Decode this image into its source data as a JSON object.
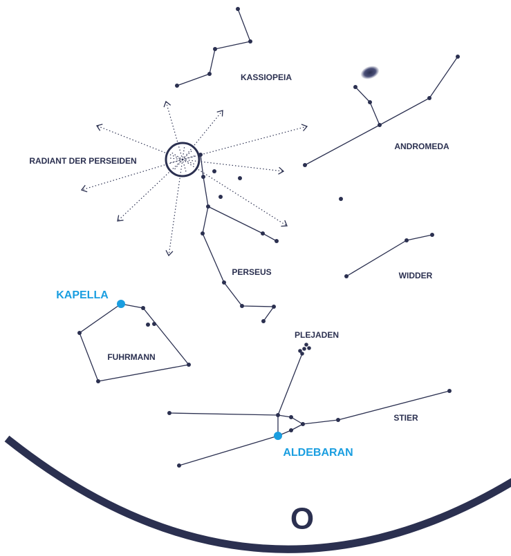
{
  "labels": {
    "kassiopeia": "KASSIOPEIA",
    "andromeda": "ANDROMEDA",
    "radiant": "RADIANT DER PERSEIDEN",
    "perseus": "PERSEUS",
    "widder": "WIDDER",
    "kapella": "KAPELLA",
    "fuhrmann": "FUHRMANN",
    "plejaden": "PLEJADEN",
    "stier": "STIER",
    "aldebaran": "ALDEBARAN"
  },
  "compass": "O"
}
